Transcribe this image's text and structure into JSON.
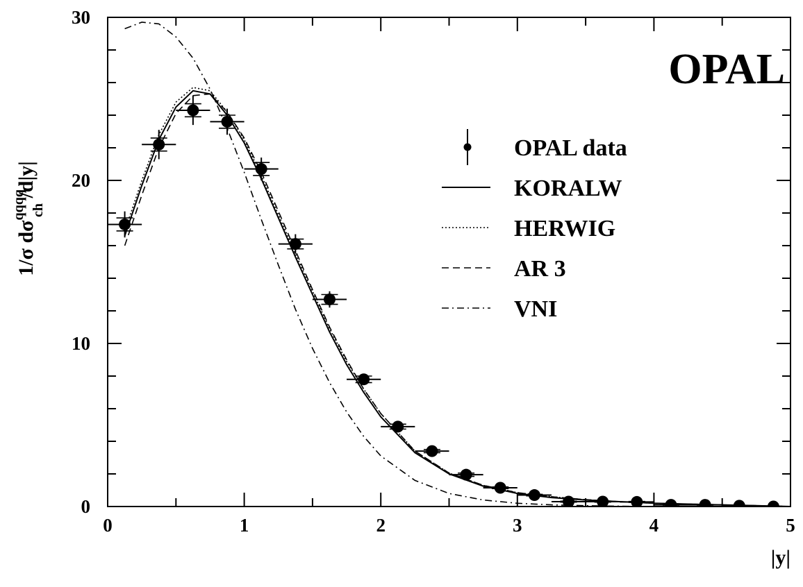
{
  "chart_data": {
    "type": "line",
    "title": "OPAL",
    "xlabel": "|y|",
    "ylabel": {
      "main": "1/σ dσ",
      "superscript": "qqqq",
      "subscript": "ch",
      "tail": " /d|y|"
    },
    "xlim": [
      0,
      5
    ],
    "ylim": [
      0,
      30
    ],
    "xticks": [
      0,
      1,
      2,
      3,
      4,
      5
    ],
    "yticks": [
      0,
      10,
      20,
      30
    ],
    "grid": false,
    "legend_position": "top-right",
    "data_points": {
      "name": "OPAL data",
      "x": [
        0.125,
        0.375,
        0.625,
        0.875,
        1.125,
        1.375,
        1.625,
        1.875,
        2.125,
        2.375,
        2.625,
        2.875,
        3.125,
        3.375,
        3.625,
        3.875,
        4.125,
        4.375,
        4.625,
        4.875
      ],
      "y": [
        17.3,
        22.2,
        24.3,
        23.6,
        20.7,
        16.1,
        12.7,
        7.8,
        4.9,
        3.4,
        1.95,
        1.15,
        0.7,
        0.3,
        0.3,
        0.28,
        0.1,
        0.1,
        0.05,
        0.0
      ],
      "xerr": 0.125,
      "yerr_stat": [
        0.4,
        0.4,
        0.4,
        0.4,
        0.4,
        0.3,
        0.3,
        0.2,
        0.15,
        0.1,
        0.1,
        0.05,
        0.05,
        0.03,
        0.03,
        0.03,
        0.02,
        0.02,
        0.02,
        0.02
      ],
      "yerr_total": [
        0.8,
        0.9,
        0.9,
        0.8,
        0.7,
        0.6,
        0.5,
        0.35,
        0.25,
        0.2,
        0.15,
        0.1,
        0.08,
        0.05,
        0.05,
        0.05,
        0.04,
        0.04,
        0.03,
        0.03
      ]
    },
    "series": [
      {
        "name": "KORALW",
        "style": "solid",
        "x": [
          0.125,
          0.25,
          0.375,
          0.5,
          0.625,
          0.75,
          0.875,
          1.0,
          1.125,
          1.25,
          1.375,
          1.5,
          1.625,
          1.75,
          1.875,
          2.0,
          2.25,
          2.5,
          2.75,
          3.0,
          3.25,
          3.5,
          3.75,
          4.0,
          4.25,
          4.5,
          4.75,
          5.0
        ],
        "y": [
          16.6,
          19.7,
          22.5,
          24.5,
          25.5,
          25.3,
          24.0,
          22.3,
          20.1,
          17.7,
          15.3,
          13.0,
          10.7,
          8.7,
          7.0,
          5.5,
          3.3,
          2.0,
          1.25,
          0.8,
          0.55,
          0.4,
          0.3,
          0.2,
          0.15,
          0.1,
          0.05,
          0.0
        ]
      },
      {
        "name": "HERWIG",
        "style": "dotted",
        "x": [
          0.125,
          0.25,
          0.375,
          0.5,
          0.625,
          0.75,
          0.875,
          1.0,
          1.125,
          1.25,
          1.375,
          1.5,
          1.625,
          1.75,
          1.875,
          2.0,
          2.25,
          2.5,
          2.75,
          3.0,
          3.25,
          3.5,
          3.75,
          4.0,
          4.25,
          4.5,
          4.75,
          5.0
        ],
        "y": [
          16.9,
          20.0,
          22.8,
          24.8,
          25.7,
          25.5,
          24.2,
          22.5,
          20.3,
          17.9,
          15.5,
          13.2,
          10.9,
          8.9,
          7.2,
          5.7,
          3.4,
          2.05,
          1.3,
          0.85,
          0.6,
          0.42,
          0.3,
          0.2,
          0.15,
          0.1,
          0.05,
          0.0
        ]
      },
      {
        "name": "AR 3",
        "style": "dashed",
        "x": [
          0.125,
          0.25,
          0.375,
          0.5,
          0.625,
          0.75,
          0.875,
          1.0,
          1.125,
          1.25,
          1.375,
          1.5,
          1.625,
          1.75,
          1.875,
          2.0,
          2.25,
          2.5,
          2.75,
          3.0,
          3.25,
          3.5,
          3.75,
          4.0,
          4.25,
          4.5,
          4.75,
          5.0
        ],
        "y": [
          16.0,
          19.1,
          22.0,
          24.1,
          25.2,
          25.3,
          24.2,
          22.6,
          20.5,
          18.1,
          15.7,
          13.3,
          11.0,
          9.0,
          7.2,
          5.7,
          3.4,
          2.05,
          1.3,
          0.85,
          0.6,
          0.42,
          0.3,
          0.2,
          0.15,
          0.1,
          0.05,
          0.0
        ]
      },
      {
        "name": "VNI",
        "style": "dashdot",
        "x": [
          0.125,
          0.25,
          0.375,
          0.5,
          0.625,
          0.75,
          0.875,
          1.0,
          1.125,
          1.25,
          1.375,
          1.5,
          1.625,
          1.75,
          1.875,
          2.0,
          2.25,
          2.5,
          2.75,
          3.0,
          3.25,
          3.5,
          3.75,
          4.0,
          4.5,
          5.0
        ],
        "y": [
          29.3,
          29.7,
          29.6,
          28.8,
          27.5,
          25.6,
          23.2,
          20.5,
          17.6,
          14.8,
          12.1,
          9.7,
          7.6,
          5.8,
          4.3,
          3.1,
          1.6,
          0.8,
          0.4,
          0.2,
          0.1,
          0.05,
          0.02,
          0.0,
          0.0,
          0.0
        ]
      }
    ]
  }
}
